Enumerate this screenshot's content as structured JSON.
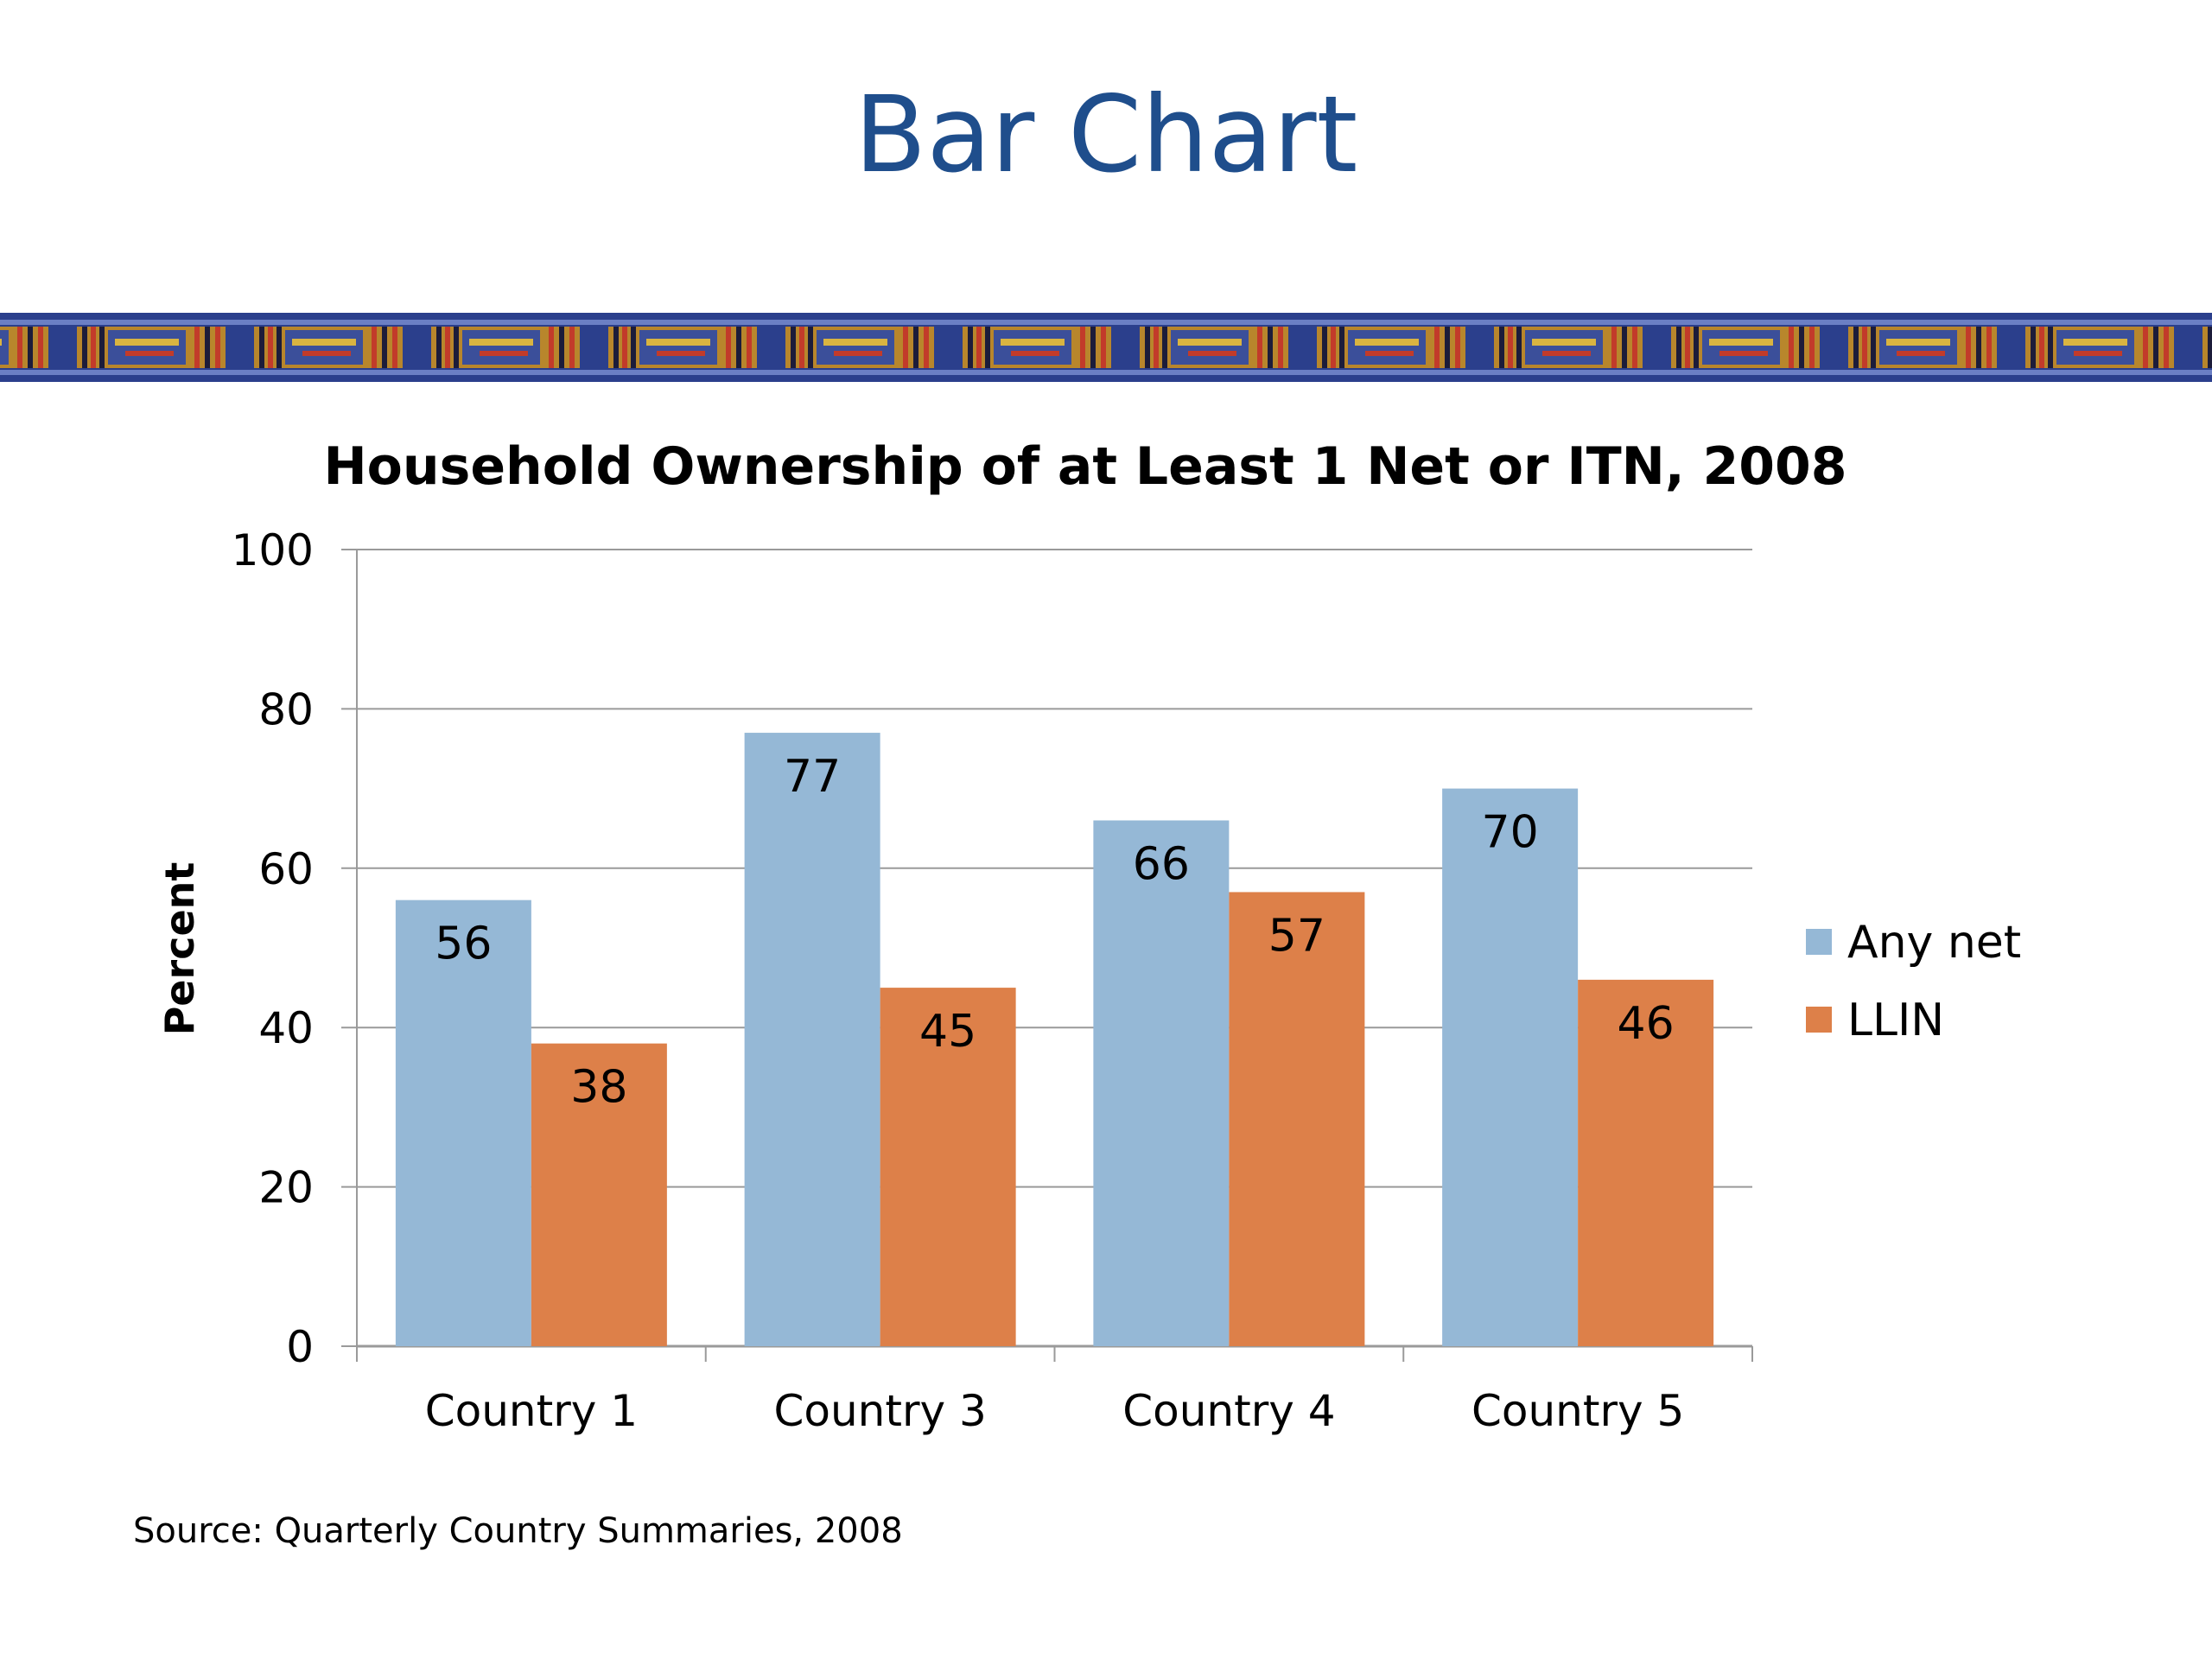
{
  "slide": {
    "title": "Bar Chart",
    "source_note": "Source: Quarterly Country Summaries, 2008"
  },
  "colors": {
    "title": "#1f4e8c",
    "banner_base": "#2b3f8c",
    "any_net": "#95b8d6",
    "llin": "#dd8049",
    "gridline": "#9a9a9a"
  },
  "chart_data": {
    "type": "bar",
    "title": "Household Ownership of at Least 1 Net or ITN, 2008",
    "xlabel": "",
    "ylabel": "Percent",
    "ylim": [
      0,
      100
    ],
    "yticks": [
      0,
      20,
      40,
      60,
      80,
      100
    ],
    "grid": true,
    "legend_position": "right",
    "categories": [
      "Country 1",
      "Country 3",
      "Country 4",
      "Country 5"
    ],
    "series": [
      {
        "name": "Any net",
        "values": [
          56,
          77,
          66,
          70
        ]
      },
      {
        "name": "LLIN",
        "values": [
          38,
          45,
          57,
          46
        ]
      }
    ]
  }
}
